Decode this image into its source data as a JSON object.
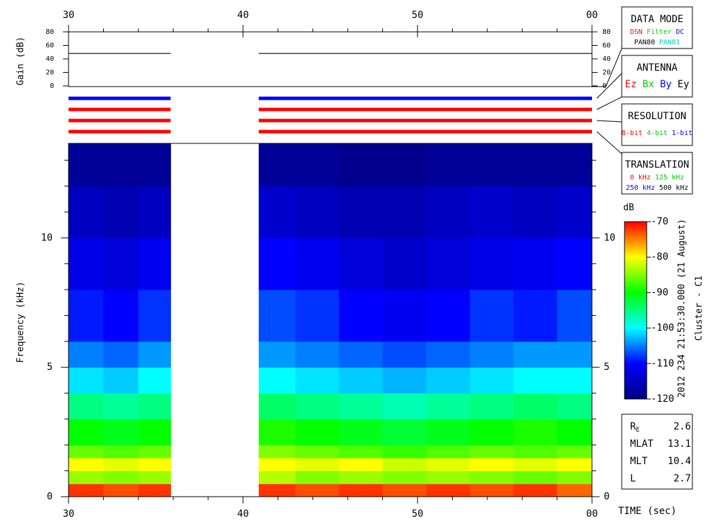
{
  "chart_data": {
    "type": "spectrogram",
    "xlabel": "TIME (sec)",
    "ylabel": "Frequency (kHz)",
    "xlim": [
      30,
      60
    ],
    "xticks": [
      30,
      40,
      50,
      {
        "value": 60,
        "label": "00"
      }
    ],
    "xminor": [
      32,
      34,
      36,
      38,
      42,
      44,
      46,
      48,
      52,
      54,
      56,
      58
    ],
    "ylim": [
      0,
      13.65
    ],
    "yticks": [
      0,
      5,
      10
    ],
    "yminor": [
      1,
      2,
      3,
      4,
      6,
      7,
      8,
      9,
      11,
      12,
      13
    ],
    "x_edges": [
      30,
      32,
      34,
      35.85,
      40.9,
      43,
      45.5,
      48,
      50.5,
      53,
      55.5,
      58,
      60
    ],
    "y_edges": [
      0,
      0.5,
      1,
      1.5,
      2,
      3,
      4,
      5,
      6,
      8,
      10,
      12,
      13.65
    ],
    "z": [
      [
        -72,
        -73,
        -72,
        null,
        -72,
        -73,
        -72,
        -73,
        -72,
        -73,
        -72,
        -74
      ],
      [
        -84,
        -85,
        -84,
        null,
        -83,
        -85,
        -84,
        -85,
        -84,
        -85,
        -86,
        -85
      ],
      [
        -80,
        -81,
        -80,
        null,
        -80,
        -81,
        -80,
        -82,
        -81,
        -80,
        -81,
        -80
      ],
      [
        -86,
        -87,
        -86,
        null,
        -85,
        -86,
        -87,
        -88,
        -87,
        -86,
        -87,
        -86
      ],
      [
        -90,
        -91,
        -90,
        null,
        -89,
        -90,
        -91,
        -92,
        -91,
        -90,
        -89,
        -90
      ],
      [
        -95,
        -96,
        -95,
        null,
        -94,
        -95,
        -96,
        -97,
        -96,
        -95,
        -94,
        -95
      ],
      [
        -101,
        -102,
        -100,
        null,
        -100,
        -101,
        -102,
        -103,
        -102,
        -101,
        -100,
        -100
      ],
      [
        -105,
        -106,
        -104,
        null,
        -104,
        -105,
        -106,
        -107,
        -106,
        -105,
        -104,
        -104
      ],
      [
        -109,
        -110,
        -108,
        null,
        -107,
        -108,
        -110,
        -111,
        -110,
        -108,
        -109,
        -107
      ],
      [
        -112,
        -113,
        -111,
        null,
        -110,
        -111,
        -113,
        -114,
        -113,
        -112,
        -111,
        -110
      ],
      [
        -115,
        -116,
        -115,
        null,
        -114,
        -115,
        -116,
        -116,
        -115,
        -114,
        -115,
        -114
      ],
      [
        -118,
        -118,
        -118,
        null,
        -118,
        -118,
        -119,
        -119,
        -118,
        -118,
        -118,
        -118
      ]
    ],
    "colormap": [
      "#000080",
      "#0000ff",
      "#00ffff",
      "#00ff00",
      "#ffff00",
      "#ff0000"
    ],
    "colorbar": {
      "label": "dB",
      "lim": [
        -120,
        -70
      ],
      "ticks": [
        -70,
        -80,
        -90,
        -100,
        -110,
        -120
      ]
    },
    "gain": {
      "ylabel": "Gain (dB)",
      "ylim": [
        0,
        80
      ],
      "yticks": [
        0,
        20,
        40,
        60,
        80
      ],
      "x": [
        30,
        35.85,
        null,
        40.9,
        60
      ],
      "values": [
        48,
        48,
        null,
        48,
        48
      ],
      "color": "#000000"
    },
    "mode_bars": [
      {
        "color": "#0000ff"
      },
      {
        "color": "#ff0000"
      },
      {
        "color": "#ff0000"
      },
      {
        "color": "#ff0000"
      }
    ],
    "panels": [
      {
        "title": "DATA MODE",
        "rows": [
          [
            {
              "text": "DSN",
              "color": "#ff0000"
            },
            {
              "text": "Filter",
              "color": "#00cc00"
            },
            {
              "text": "DC",
              "color": "#0000ff"
            }
          ],
          [
            {
              "text": "PAN80",
              "color": "#000000"
            },
            {
              "text": "PAN81",
              "color": "#00cccc"
            }
          ]
        ]
      },
      {
        "title": "ANTENNA",
        "rows": [
          [
            {
              "text": "Ez",
              "color": "#ff0000"
            },
            {
              "text": "Bx",
              "color": "#00cc00"
            },
            {
              "text": "By",
              "color": "#0000ff"
            },
            {
              "text": "Ey",
              "color": "#000000"
            }
          ]
        ]
      },
      {
        "title": "RESOLUTION",
        "rows": [
          [
            {
              "text": "8-bit",
              "color": "#ff0000"
            },
            {
              "text": "4-bit",
              "color": "#00cc00"
            },
            {
              "text": "1-bit",
              "color": "#0000ff"
            }
          ]
        ]
      },
      {
        "title": "TRANSLATION",
        "rows": [
          [
            {
              "text": "0 kHz",
              "color": "#ff0000"
            },
            {
              "text": "125 kHz",
              "color": "#00cc00"
            }
          ],
          [
            {
              "text": "250 kHz",
              "color": "#0000ff"
            },
            {
              "text": "500 kHz",
              "color": "#000000"
            }
          ]
        ]
      }
    ],
    "side_text": [
      "2012 234 21:53:30.000 (21 August)",
      "Cluster - C1"
    ],
    "orbit": [
      {
        "label": "R",
        "sub": "E",
        "value": 2.6
      },
      {
        "label": "MLAT",
        "value": 13.1
      },
      {
        "label": "MLT",
        "value": 10.4
      },
      {
        "label": "L",
        "value": 2.7
      }
    ]
  }
}
